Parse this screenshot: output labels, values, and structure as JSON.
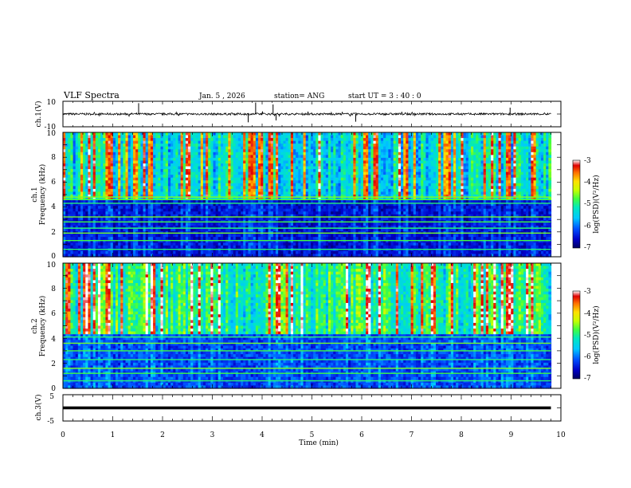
{
  "header": {
    "title": "VLF Spectra",
    "date": "Jan. 5 , 2026",
    "station": "station= ANG",
    "start_ut": "start UT =  3 : 40 : 0"
  },
  "colors": {
    "waveform": "#000000",
    "background": "#ffffff",
    "colormap": [
      "#000060",
      "#0000c8",
      "#0050ff",
      "#00c8ff",
      "#00e8c0",
      "#40ff40",
      "#c8ff00",
      "#ffe000",
      "#ff7000",
      "#e00000",
      "#ffffff"
    ]
  },
  "chart_data": [
    {
      "type": "line",
      "id": "ch1_waveform",
      "ylabel": "ch.1(V)",
      "ylim": [
        -10,
        10
      ],
      "y_ticks": [
        "10",
        "-10"
      ],
      "xlim": [
        0,
        10
      ],
      "baseline": 0,
      "trace_end_min": 9.8,
      "spikes": [
        {
          "t": 1.52,
          "v": 8.5
        },
        {
          "t": 3.72,
          "v": -6.5
        },
        {
          "t": 3.87,
          "v": 9.0
        },
        {
          "t": 4.22,
          "v": 7.5
        },
        {
          "t": 4.28,
          "v": -5.0
        },
        {
          "t": 5.88,
          "v": -6.0
        },
        {
          "t": 8.98,
          "v": 5.0
        }
      ]
    },
    {
      "type": "heatmap",
      "id": "ch1_spectrogram",
      "ylabel": "ch.1",
      "ylabel2": "Frequency (kHz)",
      "ylim": [
        0,
        10
      ],
      "y_ticks": [
        "0",
        "2",
        "4",
        "6",
        "8",
        "10"
      ],
      "xlim": [
        0,
        10
      ],
      "data_end_min": 9.8,
      "color_scale": {
        "label": "log(PSD)(V²/Hz)",
        "min": -7,
        "max": -3,
        "ticks": [
          "-3",
          "-4",
          "-5",
          "-6",
          "-7"
        ]
      },
      "noise_floor_log": -6.4,
      "sferic_top_log": -4.3,
      "transition_khz": 4.6,
      "narrowband_lines_khz": [
        0.6,
        1.3,
        1.9,
        2.3,
        2.8,
        3.2,
        4.3,
        4.6,
        4.8
      ]
    },
    {
      "type": "heatmap",
      "id": "ch2_spectrogram",
      "ylabel": "ch.2",
      "ylabel2": "Frequency (kHz)",
      "ylim": [
        0,
        10
      ],
      "y_ticks": [
        "0",
        "2",
        "4",
        "6",
        "8",
        "10"
      ],
      "xlim": [
        0,
        10
      ],
      "data_end_min": 9.8,
      "color_scale": {
        "label": "log(PSD)(V²/Hz)",
        "min": -7,
        "max": -3,
        "ticks": [
          "-3",
          "-4",
          "-5",
          "-6",
          "-7"
        ]
      },
      "noise_floor_log": -6.1,
      "sferic_top_log": -3.9,
      "transition_khz": 4.3,
      "narrowband_lines_khz": [
        0.6,
        1.2,
        1.6,
        2.3,
        3.0,
        3.6,
        4.1
      ]
    },
    {
      "type": "line",
      "id": "ch3_waveform",
      "ylabel": "ch.3(V)",
      "ylim": [
        -5,
        5
      ],
      "y_ticks": [
        "5",
        "-5"
      ],
      "xlim": [
        0,
        10
      ],
      "level": 0,
      "trace_end_min": 9.8,
      "xlabel": "Time (min)",
      "x_ticks": [
        "0",
        "1",
        "2",
        "3",
        "4",
        "5",
        "6",
        "7",
        "8",
        "9",
        "10"
      ]
    }
  ]
}
